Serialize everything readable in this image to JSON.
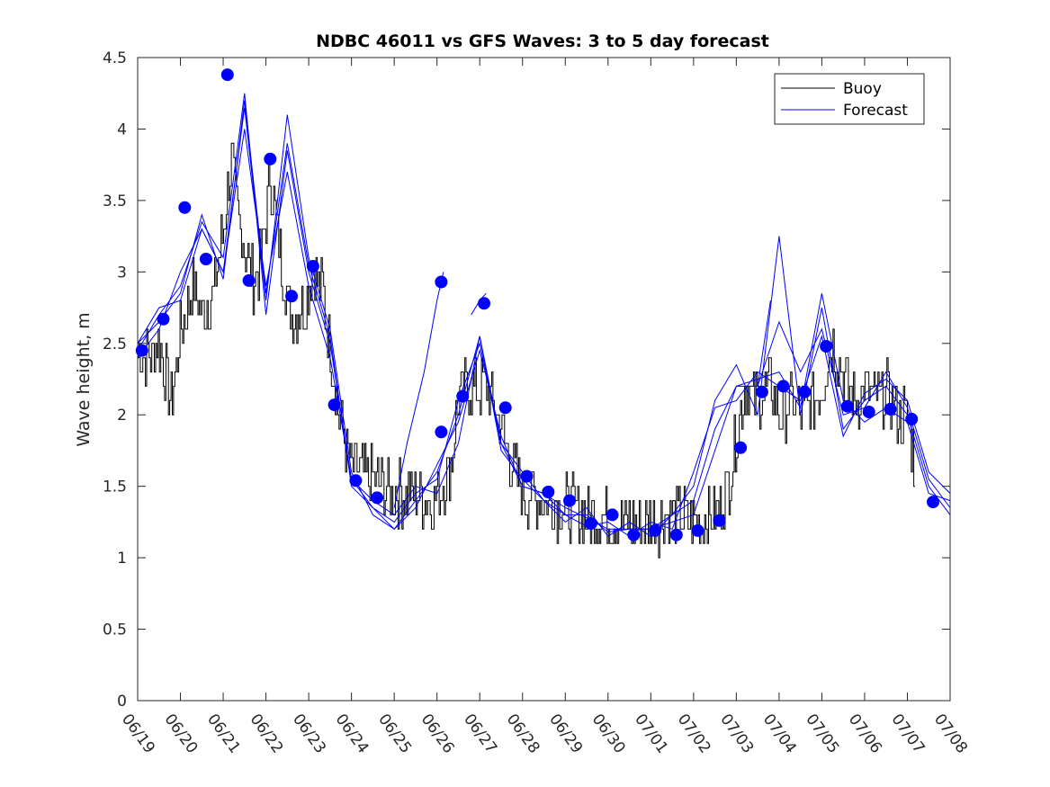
{
  "chart_data": {
    "type": "line",
    "title": "NDBC 46011 vs GFS Waves: 3 to 5 day forecast",
    "xlabel": "",
    "ylabel": "Wave height, m",
    "xlim": [
      0,
      19
    ],
    "ylim": [
      0,
      4.5
    ],
    "y_ticks": [
      "0",
      "0.5",
      "1",
      "1.5",
      "2",
      "2.5",
      "3",
      "3.5",
      "4",
      "4.5"
    ],
    "x_ticks": [
      "06/19",
      "06/20",
      "06/21",
      "06/22",
      "06/23",
      "06/24",
      "06/25",
      "06/26",
      "06/27",
      "06/28",
      "06/29",
      "06/30",
      "07/01",
      "07/02",
      "07/03",
      "07/04",
      "07/05",
      "07/06",
      "07/07",
      "07/08"
    ],
    "grid": false,
    "legend": {
      "position": "top-right",
      "entries": [
        "Buoy",
        "Forecast"
      ]
    },
    "colors": {
      "buoy": "#000000",
      "forecast": "#0000ff",
      "marker": "#0000ff"
    },
    "buoy_anchors": [
      [
        0.0,
        2.45
      ],
      [
        0.3,
        2.4
      ],
      [
        0.5,
        2.5
      ],
      [
        0.7,
        2.2
      ],
      [
        0.8,
        2.1
      ],
      [
        1.0,
        2.6
      ],
      [
        1.3,
        2.9
      ],
      [
        1.5,
        2.7
      ],
      [
        1.8,
        2.9
      ],
      [
        2.0,
        3.3
      ],
      [
        2.2,
        3.8
      ],
      [
        2.3,
        3.4
      ],
      [
        2.5,
        3.2
      ],
      [
        2.7,
        2.9
      ],
      [
        2.9,
        3.1
      ],
      [
        3.1,
        3.7
      ],
      [
        3.3,
        3.2
      ],
      [
        3.5,
        2.8
      ],
      [
        3.7,
        2.7
      ],
      [
        3.9,
        2.8
      ],
      [
        4.1,
        3.0
      ],
      [
        4.3,
        2.9
      ],
      [
        4.5,
        2.5
      ],
      [
        4.7,
        2.0
      ],
      [
        4.9,
        1.7
      ],
      [
        5.1,
        1.6
      ],
      [
        5.5,
        1.55
      ],
      [
        6.0,
        1.45
      ],
      [
        6.5,
        1.45
      ],
      [
        6.8,
        1.4
      ],
      [
        7.0,
        1.45
      ],
      [
        7.3,
        1.6
      ],
      [
        7.5,
        2.1
      ],
      [
        7.8,
        2.2
      ],
      [
        8.0,
        2.2
      ],
      [
        8.2,
        2.2
      ],
      [
        8.4,
        2.0
      ],
      [
        8.6,
        1.8
      ],
      [
        8.8,
        1.6
      ],
      [
        9.0,
        1.45
      ],
      [
        9.5,
        1.4
      ],
      [
        10.0,
        1.35
      ],
      [
        10.5,
        1.3
      ],
      [
        11.0,
        1.25
      ],
      [
        11.5,
        1.25
      ],
      [
        12.0,
        1.25
      ],
      [
        12.5,
        1.3
      ],
      [
        13.0,
        1.25
      ],
      [
        13.5,
        1.3
      ],
      [
        13.8,
        1.5
      ],
      [
        14.0,
        1.9
      ],
      [
        14.2,
        2.2
      ],
      [
        14.5,
        2.1
      ],
      [
        14.8,
        2.2
      ],
      [
        15.0,
        2.0
      ],
      [
        15.3,
        2.1
      ],
      [
        15.5,
        2.0
      ],
      [
        15.8,
        2.1
      ],
      [
        16.0,
        2.2
      ],
      [
        16.2,
        2.5
      ],
      [
        16.4,
        2.4
      ],
      [
        16.6,
        2.2
      ],
      [
        16.8,
        2.1
      ],
      [
        17.0,
        2.2
      ],
      [
        17.3,
        2.1
      ],
      [
        17.5,
        2.15
      ],
      [
        17.8,
        2.0
      ],
      [
        18.0,
        2.0
      ],
      [
        18.2,
        1.6
      ]
    ],
    "forecast_series": [
      [
        [
          0.0,
          2.45
        ],
        [
          0.5,
          2.7
        ],
        [
          1.0,
          2.9
        ],
        [
          1.5,
          3.35
        ],
        [
          2.0,
          3.1
        ],
        [
          2.5,
          4.25
        ],
        [
          3.0,
          2.7
        ],
        [
          3.5,
          3.85
        ],
        [
          4.0,
          3.0
        ],
        [
          4.5,
          2.5
        ],
        [
          5.0,
          1.55
        ],
        [
          5.5,
          1.35
        ],
        [
          6.0,
          1.25
        ],
        [
          6.5,
          1.45
        ],
        [
          7.0,
          1.55
        ],
        [
          7.5,
          2.1
        ],
        [
          8.0,
          2.5
        ],
        [
          8.5,
          1.8
        ],
        [
          9.0,
          1.5
        ],
        [
          9.5,
          1.45
        ],
        [
          10.0,
          1.3
        ],
        [
          10.5,
          1.3
        ],
        [
          11.0,
          1.18
        ],
        [
          11.5,
          1.2
        ],
        [
          12.0,
          1.2
        ],
        [
          12.5,
          1.25
        ],
        [
          13.0,
          1.3
        ],
        [
          13.5,
          1.75
        ],
        [
          14.0,
          2.2
        ],
        [
          14.5,
          2.25
        ],
        [
          15.0,
          2.3
        ],
        [
          15.5,
          2.05
        ],
        [
          16.0,
          2.85
        ],
        [
          16.5,
          2.1
        ],
        [
          17.0,
          1.95
        ],
        [
          17.5,
          2.05
        ],
        [
          18.0,
          1.95
        ],
        [
          18.5,
          1.45
        ],
        [
          19.0,
          1.4
        ]
      ],
      [
        [
          0.0,
          2.4
        ],
        [
          0.5,
          2.6
        ],
        [
          1.0,
          3.0
        ],
        [
          1.5,
          3.3
        ],
        [
          2.0,
          3.0
        ],
        [
          2.5,
          4.15
        ],
        [
          3.0,
          2.8
        ],
        [
          3.5,
          4.1
        ],
        [
          4.0,
          3.1
        ],
        [
          4.5,
          2.6
        ],
        [
          5.0,
          1.6
        ],
        [
          5.5,
          1.3
        ],
        [
          6.0,
          1.2
        ],
        [
          6.5,
          1.4
        ],
        [
          7.0,
          1.6
        ],
        [
          7.5,
          2.0
        ],
        [
          8.0,
          2.55
        ],
        [
          8.5,
          1.75
        ],
        [
          9.0,
          1.55
        ],
        [
          9.5,
          1.4
        ],
        [
          10.0,
          1.25
        ],
        [
          10.5,
          1.35
        ],
        [
          11.0,
          1.15
        ],
        [
          11.5,
          1.25
        ],
        [
          12.0,
          1.15
        ],
        [
          12.5,
          1.3
        ],
        [
          13.0,
          1.5
        ],
        [
          13.5,
          2.1
        ],
        [
          14.0,
          2.35
        ],
        [
          14.5,
          2.0
        ],
        [
          15.0,
          3.25
        ],
        [
          15.5,
          2.0
        ],
        [
          16.0,
          2.75
        ],
        [
          16.5,
          1.9
        ],
        [
          17.0,
          2.1
        ],
        [
          17.5,
          2.2
        ],
        [
          18.0,
          2.0
        ],
        [
          18.5,
          1.5
        ],
        [
          19.0,
          1.3
        ]
      ],
      [
        [
          0.0,
          2.5
        ],
        [
          0.5,
          2.65
        ],
        [
          1.0,
          2.85
        ],
        [
          1.5,
          3.4
        ],
        [
          2.0,
          2.95
        ],
        [
          2.5,
          4.2
        ],
        [
          3.0,
          2.85
        ],
        [
          3.5,
          3.9
        ],
        [
          4.0,
          3.05
        ],
        [
          4.5,
          2.55
        ],
        [
          5.0,
          1.5
        ],
        [
          5.5,
          1.35
        ],
        [
          6.0,
          1.2
        ],
        [
          6.5,
          1.35
        ],
        [
          7.0,
          1.65
        ],
        [
          7.5,
          1.95
        ],
        [
          8.0,
          2.45
        ],
        [
          8.5,
          1.85
        ],
        [
          9.0,
          1.5
        ],
        [
          9.5,
          1.45
        ],
        [
          10.0,
          1.35
        ],
        [
          10.5,
          1.28
        ],
        [
          11.0,
          1.2
        ],
        [
          11.5,
          1.2
        ],
        [
          12.0,
          1.2
        ],
        [
          12.5,
          1.3
        ],
        [
          13.0,
          1.4
        ],
        [
          13.5,
          1.9
        ],
        [
          14.0,
          2.2
        ],
        [
          14.5,
          2.2
        ],
        [
          15.0,
          2.65
        ],
        [
          15.5,
          2.3
        ],
        [
          16.0,
          2.6
        ],
        [
          16.5,
          2.0
        ],
        [
          17.0,
          2.05
        ],
        [
          17.5,
          2.3
        ],
        [
          18.0,
          2.05
        ],
        [
          18.5,
          1.55
        ],
        [
          19.0,
          1.35
        ]
      ],
      [
        [
          0.0,
          2.5
        ],
        [
          0.5,
          2.75
        ],
        [
          1.0,
          2.8
        ],
        [
          1.5,
          3.3
        ],
        [
          2.0,
          3.0
        ],
        [
          2.5,
          4.0
        ],
        [
          3.0,
          2.9
        ],
        [
          3.5,
          3.7
        ],
        [
          4.0,
          2.9
        ],
        [
          4.5,
          2.4
        ],
        [
          5.0,
          1.55
        ],
        [
          5.5,
          1.4
        ],
        [
          6.0,
          1.3
        ],
        [
          6.5,
          1.5
        ],
        [
          7.0,
          1.45
        ],
        [
          7.5,
          1.8
        ],
        [
          8.0,
          2.55
        ],
        [
          8.5,
          1.8
        ],
        [
          9.0,
          1.6
        ],
        [
          9.5,
          1.4
        ],
        [
          10.0,
          1.3
        ],
        [
          10.5,
          1.22
        ],
        [
          11.0,
          1.25
        ],
        [
          11.5,
          1.15
        ],
        [
          12.0,
          1.25
        ],
        [
          12.5,
          1.2
        ],
        [
          13.0,
          1.6
        ],
        [
          13.5,
          2.05
        ],
        [
          14.0,
          2.1
        ],
        [
          14.5,
          2.3
        ],
        [
          15.0,
          2.2
        ],
        [
          15.5,
          2.1
        ],
        [
          16.0,
          2.55
        ],
        [
          16.5,
          1.85
        ],
        [
          17.0,
          2.15
        ],
        [
          17.5,
          2.25
        ],
        [
          18.0,
          2.1
        ],
        [
          18.5,
          1.6
        ],
        [
          19.0,
          1.45
        ]
      ],
      [
        [
          6.0,
          1.35
        ],
        [
          6.3,
          1.8
        ],
        [
          6.7,
          2.3
        ],
        [
          7.0,
          2.8
        ],
        [
          7.15,
          3.0
        ]
      ],
      [
        [
          7.8,
          2.7
        ],
        [
          8.0,
          2.8
        ],
        [
          8.15,
          2.85
        ]
      ],
      [
        [
          14.5,
          2.2
        ],
        [
          14.8,
          2.8
        ]
      ]
    ],
    "forecast_markers": [
      [
        0.1,
        2.45
      ],
      [
        0.6,
        2.67
      ],
      [
        1.1,
        3.45
      ],
      [
        1.6,
        3.09
      ],
      [
        2.1,
        4.38
      ],
      [
        2.6,
        2.94
      ],
      [
        3.1,
        3.79
      ],
      [
        3.6,
        2.83
      ],
      [
        4.1,
        3.04
      ],
      [
        4.6,
        2.07
      ],
      [
        5.1,
        1.54
      ],
      [
        5.6,
        1.42
      ],
      [
        7.1,
        2.93
      ],
      [
        7.1,
        1.88
      ],
      [
        7.6,
        2.13
      ],
      [
        8.1,
        2.78
      ],
      [
        8.6,
        2.05
      ],
      [
        9.1,
        1.57
      ],
      [
        9.6,
        1.46
      ],
      [
        10.1,
        1.4
      ],
      [
        10.6,
        1.24
      ],
      [
        11.1,
        1.3
      ],
      [
        11.6,
        1.16
      ],
      [
        12.1,
        1.19
      ],
      [
        12.6,
        1.16
      ],
      [
        13.1,
        1.19
      ],
      [
        13.6,
        1.26
      ],
      [
        14.1,
        1.77
      ],
      [
        14.6,
        2.16
      ],
      [
        15.1,
        2.2
      ],
      [
        15.6,
        2.16
      ],
      [
        16.1,
        2.48
      ],
      [
        16.6,
        2.06
      ],
      [
        17.1,
        2.02
      ],
      [
        17.6,
        2.04
      ],
      [
        18.1,
        1.97
      ],
      [
        18.6,
        1.39
      ]
    ]
  }
}
